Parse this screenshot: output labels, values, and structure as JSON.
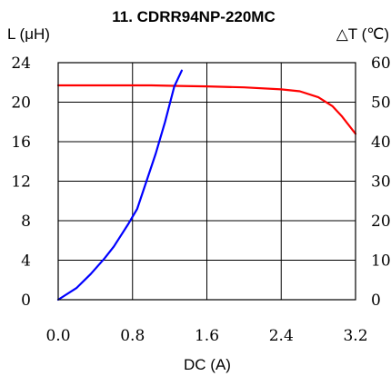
{
  "chart_data": {
    "type": "line",
    "title": "11. CDRR94NP-220MC",
    "xlabel": "DC (A)",
    "ylabel_left": "L (μH)",
    "ylabel_right": "△T (℃)",
    "xlim": [
      0,
      3.2
    ],
    "ylim_left": [
      0,
      24
    ],
    "ylim_right": [
      0,
      60
    ],
    "x_ticks": [
      "0.0",
      "0.8",
      "1.6",
      "2.4",
      "3.2"
    ],
    "y_left_ticks": [
      "0",
      "4",
      "8",
      "12",
      "16",
      "20",
      "24"
    ],
    "y_right_ticks": [
      "0",
      "10",
      "20",
      "30",
      "40",
      "50",
      "60"
    ],
    "grid": true,
    "series": [
      {
        "axis": "left",
        "color": "#ff0000",
        "x": [
          0.0,
          0.5,
          1.0,
          1.3,
          1.6,
          2.0,
          2.4,
          2.6,
          2.8,
          2.95,
          3.05,
          3.15,
          3.2
        ],
        "y": [
          21.7,
          21.7,
          21.7,
          21.65,
          21.6,
          21.5,
          21.3,
          21.1,
          20.5,
          19.6,
          18.6,
          17.4,
          16.8
        ]
      },
      {
        "axis": "right",
        "color": "#0000ff",
        "x": [
          0.0,
          0.2,
          0.35,
          0.5,
          0.6,
          0.75,
          0.85,
          0.95,
          1.05,
          1.15,
          1.25,
          1.33
        ],
        "y": [
          0,
          3,
          6.5,
          10.5,
          13.5,
          19,
          23,
          30,
          37,
          45,
          54,
          58
        ]
      }
    ]
  }
}
